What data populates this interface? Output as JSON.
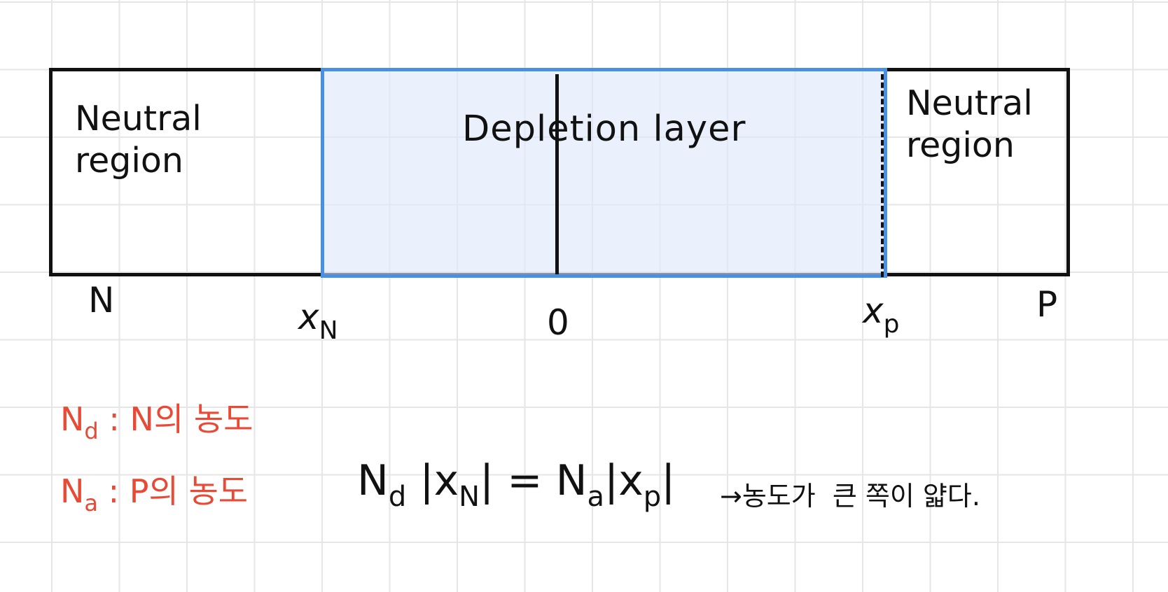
{
  "regions": {
    "n_side": "Neutral\nregion",
    "depletion": "Depletion layer",
    "p_side": "Neutral\nregion"
  },
  "axis": {
    "n_label": "N",
    "xn_symbol": "x",
    "xn_subscript": "N",
    "origin": "0",
    "xp_symbol": "x",
    "xp_subscript": "p",
    "p_label": "P"
  },
  "legend": {
    "nd_symbol": "N",
    "nd_subscript": "d",
    "nd_text": " : N의 농도",
    "na_symbol": "N",
    "na_subscript": "a",
    "na_text": " : P의 농도"
  },
  "equation": {
    "part1": "N",
    "sub1": "d",
    "part2": " |x",
    "sub2": "N",
    "part3": "| = N",
    "sub3": "a",
    "part4": "|x",
    "sub4": "p",
    "part5": "|",
    "conclusion": "→농도가  큰 쪽이 얇다."
  },
  "colors": {
    "ink": "#111111",
    "depletion_border": "#4a90e2",
    "depletion_fill": "#dde9fa",
    "legend": "#e84a36",
    "grid": "#e6e6e6"
  }
}
